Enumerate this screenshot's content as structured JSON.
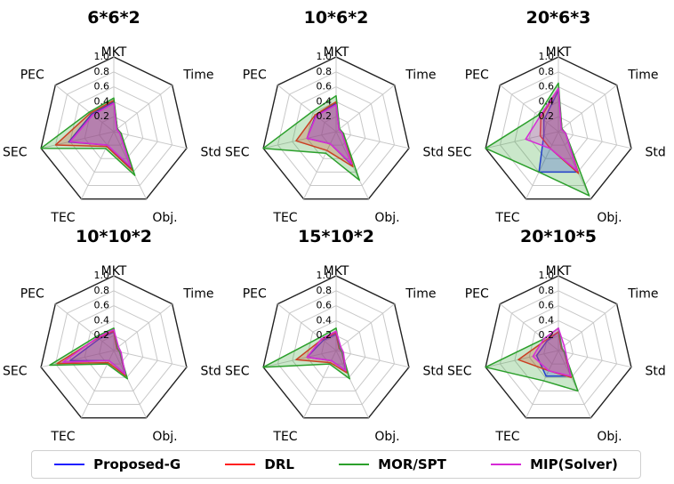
{
  "chart_data": [
    {
      "type": "radar",
      "title": "6*6*2",
      "axes": [
        "MKT",
        "Time",
        "Std",
        "Obj.",
        "TEC",
        "SEC",
        "PEC"
      ],
      "rlim": [
        0,
        1.0
      ],
      "rticks": [
        "0.2",
        "0.4",
        "0.6",
        "0.8",
        "1.0"
      ],
      "series": [
        {
          "name": "Proposed-G",
          "values": [
            0.4,
            0.06,
            0.1,
            0.55,
            0.2,
            0.62,
            0.38
          ]
        },
        {
          "name": "DRL",
          "values": [
            0.42,
            0.06,
            0.1,
            0.58,
            0.22,
            0.8,
            0.4
          ]
        },
        {
          "name": "MOR/SPT",
          "values": [
            0.45,
            0.06,
            0.1,
            0.65,
            0.25,
            1.0,
            0.42
          ]
        },
        {
          "name": "MIP(Solver)",
          "values": [
            0.38,
            0.05,
            0.08,
            0.52,
            0.2,
            0.6,
            0.36
          ]
        }
      ]
    },
    {
      "type": "radar",
      "title": "10*6*2",
      "axes": [
        "MKT",
        "Time",
        "Std",
        "Obj.",
        "TEC",
        "SEC",
        "PEC"
      ],
      "rlim": [
        0,
        1.0
      ],
      "rticks": [
        "0.2",
        "0.4",
        "0.6",
        "0.8",
        "1.0"
      ],
      "series": [
        {
          "name": "Proposed-G",
          "values": [
            0.38,
            0.05,
            0.1,
            0.5,
            0.18,
            0.4,
            0.35
          ]
        },
        {
          "name": "DRL",
          "values": [
            0.4,
            0.05,
            0.1,
            0.52,
            0.28,
            0.55,
            0.36
          ]
        },
        {
          "name": "MOR/SPT",
          "values": [
            0.48,
            0.06,
            0.1,
            0.72,
            0.32,
            1.0,
            0.42
          ]
        },
        {
          "name": "MIP(Solver)",
          "values": [
            0.36,
            0.05,
            0.08,
            0.48,
            0.18,
            0.4,
            0.34
          ]
        }
      ]
    },
    {
      "type": "radar",
      "title": "20*6*3",
      "axes": [
        "MKT",
        "Time",
        "Std",
        "Obj.",
        "TEC",
        "SEC",
        "PEC"
      ],
      "rlim": [
        0,
        1.0
      ],
      "rticks": [
        "0.2",
        "0.4",
        "0.6",
        "0.8",
        "1.0"
      ],
      "series": [
        {
          "name": "Proposed-G",
          "values": [
            0.55,
            0.06,
            0.1,
            0.6,
            0.6,
            0.2,
            0.25
          ]
        },
        {
          "name": "DRL",
          "values": [
            0.58,
            0.06,
            0.1,
            0.62,
            0.25,
            0.25,
            0.3
          ]
        },
        {
          "name": "MOR/SPT",
          "values": [
            0.65,
            0.06,
            0.1,
            0.95,
            0.6,
            1.0,
            0.35
          ]
        },
        {
          "name": "MIP(Solver)",
          "values": [
            0.58,
            0.05,
            0.1,
            0.58,
            0.25,
            0.45,
            0.32
          ]
        }
      ]
    },
    {
      "type": "radar",
      "title": "10*10*2",
      "axes": [
        "MKT",
        "Time",
        "Std",
        "Obj.",
        "TEC",
        "SEC",
        "PEC"
      ],
      "rlim": [
        0,
        1.0
      ],
      "rticks": [
        "0.2",
        "0.4",
        "0.6",
        "0.8",
        "1.0"
      ],
      "series": [
        {
          "name": "Proposed-G",
          "values": [
            0.25,
            0.05,
            0.08,
            0.35,
            0.15,
            0.6,
            0.25
          ]
        },
        {
          "name": "DRL",
          "values": [
            0.26,
            0.05,
            0.08,
            0.38,
            0.18,
            0.78,
            0.27
          ]
        },
        {
          "name": "MOR/SPT",
          "values": [
            0.3,
            0.06,
            0.08,
            0.42,
            0.2,
            0.88,
            0.3
          ]
        },
        {
          "name": "MIP(Solver)",
          "values": [
            0.28,
            0.08,
            0.1,
            0.35,
            0.15,
            0.7,
            0.28
          ]
        }
      ]
    },
    {
      "type": "radar",
      "title": "15*10*2",
      "axes": [
        "MKT",
        "Time",
        "Std",
        "Obj.",
        "TEC",
        "SEC",
        "PEC"
      ],
      "rlim": [
        0,
        1.0
      ],
      "rticks": [
        "0.2",
        "0.4",
        "0.6",
        "0.8",
        "1.0"
      ],
      "series": [
        {
          "name": "Proposed-G",
          "values": [
            0.22,
            0.05,
            0.08,
            0.3,
            0.15,
            0.4,
            0.22
          ]
        },
        {
          "name": "DRL",
          "values": [
            0.24,
            0.05,
            0.08,
            0.33,
            0.18,
            0.55,
            0.24
          ]
        },
        {
          "name": "MOR/SPT",
          "values": [
            0.3,
            0.06,
            0.08,
            0.42,
            0.2,
            1.0,
            0.28
          ]
        },
        {
          "name": "MIP(Solver)",
          "values": [
            0.26,
            0.08,
            0.1,
            0.3,
            0.15,
            0.4,
            0.25
          ]
        }
      ]
    },
    {
      "type": "radar",
      "title": "20*10*5",
      "axes": [
        "MKT",
        "Time",
        "Std",
        "Obj.",
        "TEC",
        "SEC",
        "PEC"
      ],
      "rlim": [
        0,
        1.0
      ],
      "rticks": [
        "0.2",
        "0.4",
        "0.6",
        "0.8",
        "1.0"
      ],
      "series": [
        {
          "name": "Proposed-G",
          "values": [
            0.25,
            0.05,
            0.08,
            0.38,
            0.38,
            0.3,
            0.2
          ]
        },
        {
          "name": "DRL",
          "values": [
            0.25,
            0.05,
            0.08,
            0.4,
            0.3,
            0.55,
            0.22
          ]
        },
        {
          "name": "MOR/SPT",
          "values": [
            0.3,
            0.06,
            0.08,
            0.6,
            0.45,
            1.0,
            0.25
          ]
        },
        {
          "name": "MIP(Solver)",
          "values": [
            0.3,
            0.1,
            0.1,
            0.38,
            0.3,
            0.35,
            0.25
          ]
        }
      ]
    }
  ],
  "legend": {
    "placement": "bottom",
    "items": [
      {
        "label": "Proposed-G",
        "color": "#1f1fff"
      },
      {
        "label": "DRL",
        "color": "#ff2020"
      },
      {
        "label": "MOR/SPT",
        "color": "#2ca02c"
      },
      {
        "label": "MIP(Solver)",
        "color": "#d62ad6"
      }
    ]
  },
  "colors": {
    "Proposed-G": "#1f1fff",
    "DRL": "#ff2020",
    "MOR/SPT": "#2ca02c",
    "MIP(Solver)": "#d62ad6",
    "grid": "#c8c8c8",
    "frame": "#222222"
  }
}
